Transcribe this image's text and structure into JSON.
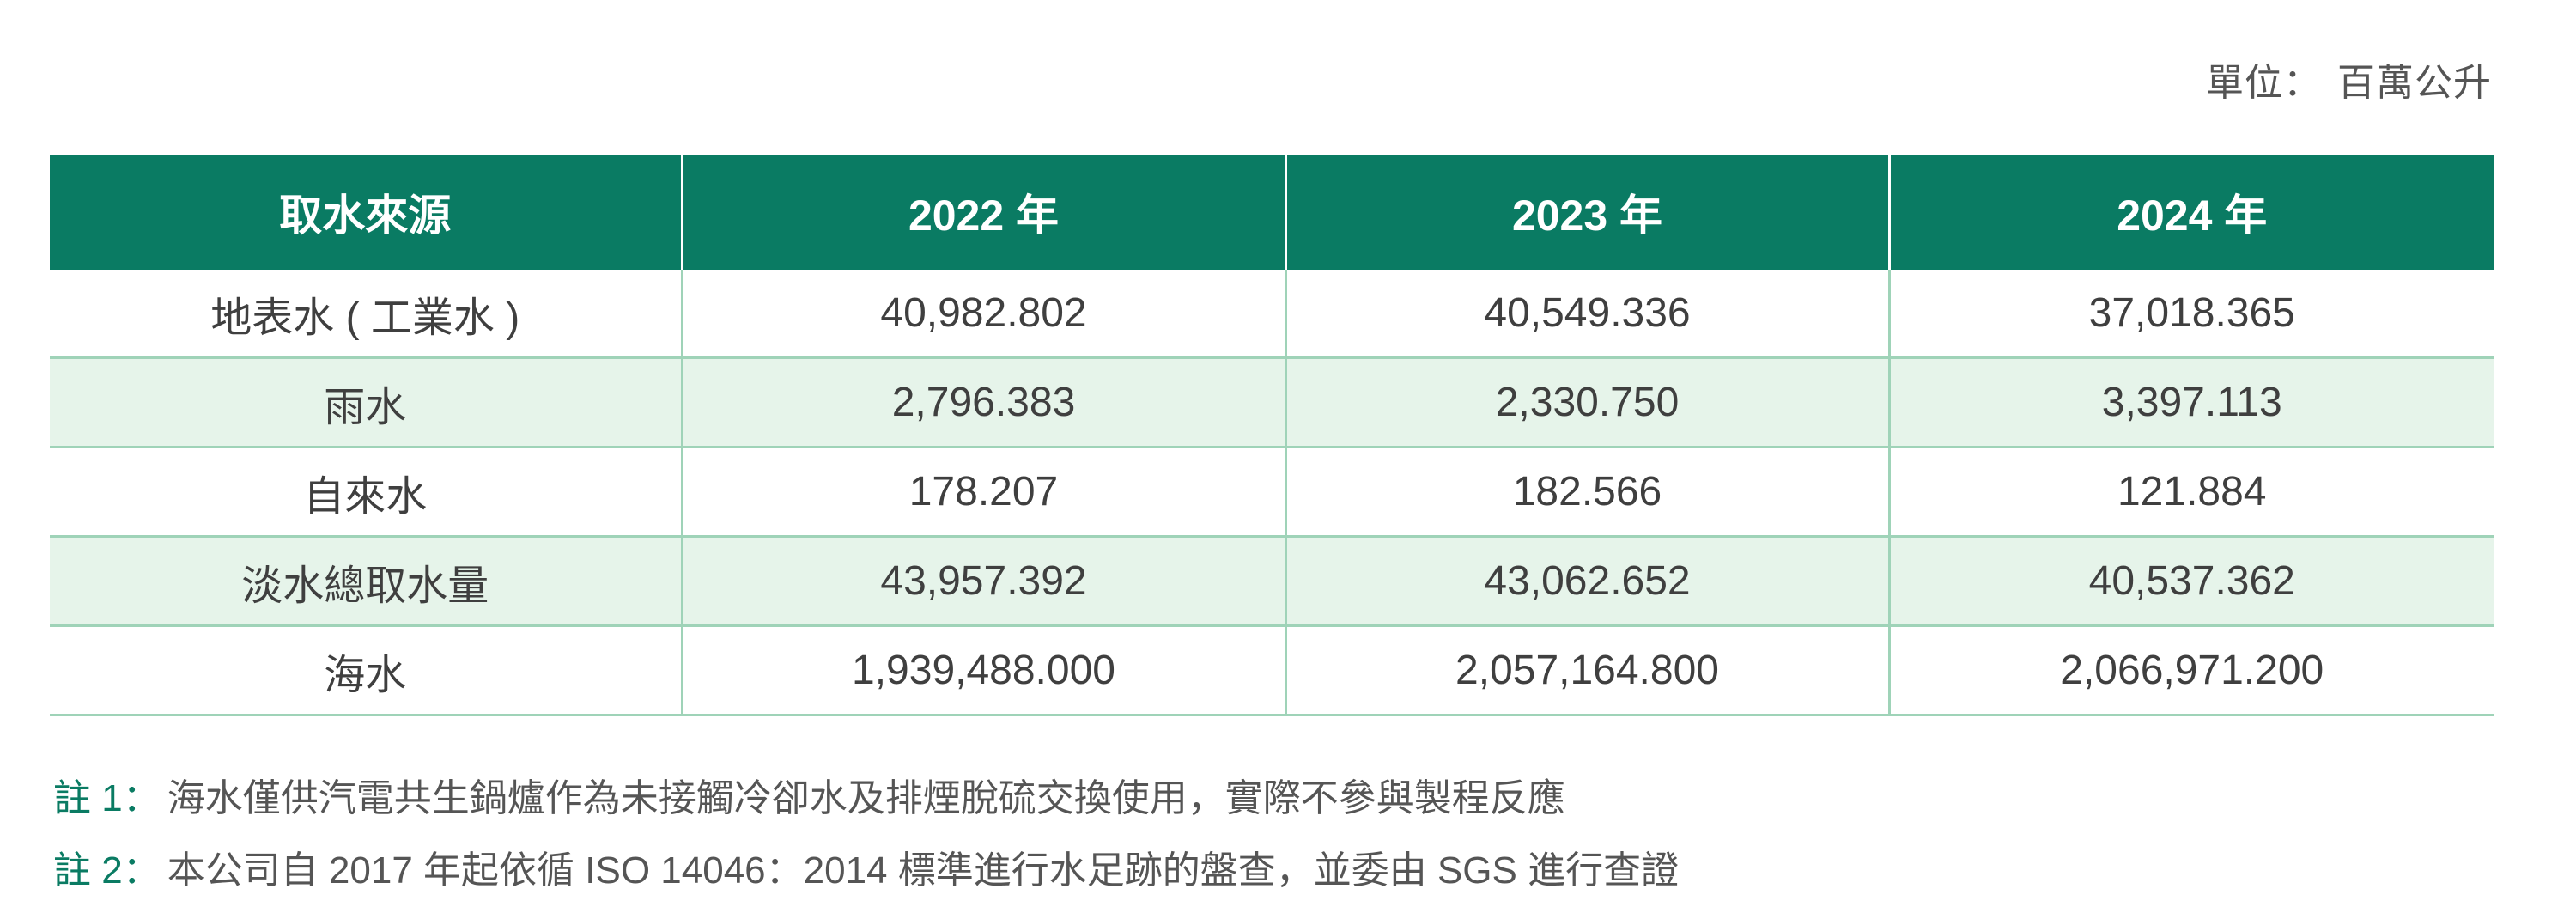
{
  "unit": {
    "label": "單位：",
    "value": "百萬公升"
  },
  "table": {
    "headers": [
      "取水來源",
      "2022 年",
      "2023 年",
      "2024 年"
    ],
    "rows": [
      {
        "source": "地表水 ( 工業水 )",
        "values": [
          "40,982.802",
          "40,549.336",
          "37,018.365"
        ]
      },
      {
        "source": "雨水",
        "values": [
          "2,796.383",
          "2,330.750",
          "3,397.113"
        ]
      },
      {
        "source": "自來水",
        "values": [
          "178.207",
          "182.566",
          "121.884"
        ]
      },
      {
        "source": "淡水總取水量",
        "values": [
          "43,957.392",
          "43,062.652",
          "40,537.362"
        ]
      },
      {
        "source": "海水",
        "values": [
          "1,939,488.000",
          "2,057,164.800",
          "2,066,971.200"
        ]
      }
    ]
  },
  "notes": [
    {
      "tag": "註 1：",
      "text": "海水僅供汽電共生鍋爐作為未接觸冷卻水及排煙脫硫交換使用，實際不參與製程反應"
    },
    {
      "tag": "註 2：",
      "text": "本公司自 2017 年起依循 ISO 14046：2014 標準進行水足跡的盤查，並委由 SGS 進行查證"
    }
  ],
  "colors": {
    "header_bg": "#0a7b63",
    "alt_row_bg": "#e6f4ea",
    "border": "#9fd3b8",
    "note_tag": "#0a7b63"
  }
}
